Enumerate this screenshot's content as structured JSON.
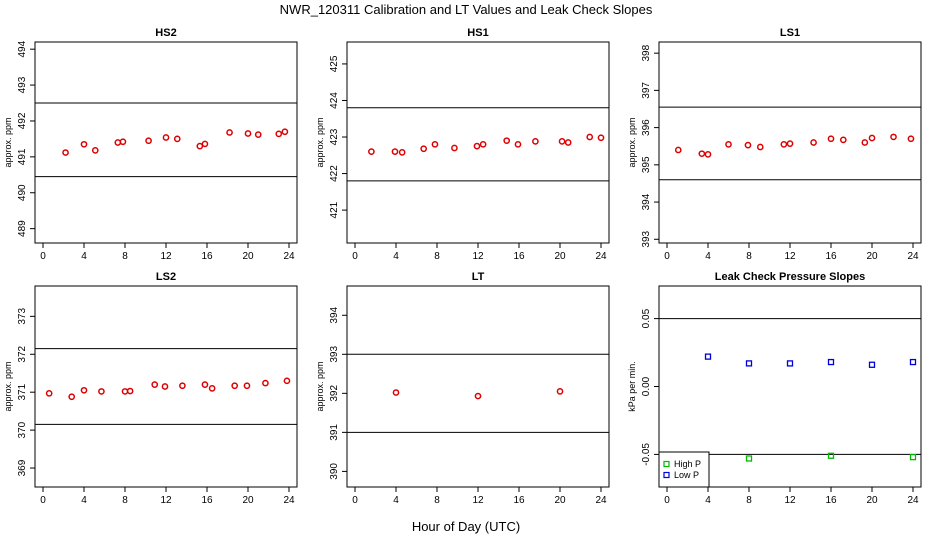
{
  "title": "NWR_120311  Calibration and LT Values and Leak Check Slopes",
  "xlabel": "Hour of Day (UTC)",
  "colors": {
    "red": "#dd0000",
    "blue": "#0000dd",
    "green": "#00bb00",
    "line": "#000000"
  },
  "chart_data": [
    {
      "type": "scatter",
      "title": "HS2",
      "ylabel": "approx. ppm",
      "xlim": [
        0,
        24
      ],
      "xticks": [
        0,
        4,
        8,
        12,
        16,
        20,
        24
      ],
      "ylim": [
        488.6,
        494.2
      ],
      "yticks": [
        489,
        490,
        491,
        492,
        493,
        494
      ],
      "hlines": [
        492.5,
        490.45
      ],
      "series": [
        {
          "name": "HS2",
          "color": "red",
          "marker": "circle",
          "x": [
            2.2,
            4.0,
            5.1,
            7.3,
            7.8,
            10.3,
            12.0,
            13.1,
            15.3,
            15.8,
            18.2,
            20.0,
            21.0,
            23.0,
            23.6
          ],
          "y": [
            491.12,
            491.35,
            491.18,
            491.4,
            491.42,
            491.45,
            491.54,
            491.5,
            491.3,
            491.36,
            491.68,
            491.65,
            491.62,
            491.64,
            491.7
          ]
        }
      ]
    },
    {
      "type": "scatter",
      "title": "HS1",
      "ylabel": "approx. ppm",
      "xlim": [
        0,
        24
      ],
      "xticks": [
        0,
        4,
        8,
        12,
        16,
        20,
        24
      ],
      "ylim": [
        420.1,
        425.6
      ],
      "yticks": [
        421,
        422,
        423,
        424,
        425
      ],
      "hlines": [
        423.8,
        421.8
      ],
      "series": [
        {
          "name": "HS1",
          "color": "red",
          "marker": "circle",
          "x": [
            1.6,
            3.9,
            4.6,
            6.7,
            7.8,
            9.7,
            11.9,
            12.5,
            14.8,
            15.9,
            17.6,
            20.2,
            20.8,
            22.9,
            24.0
          ],
          "y": [
            422.6,
            422.6,
            422.58,
            422.68,
            422.8,
            422.7,
            422.75,
            422.8,
            422.9,
            422.8,
            422.88,
            422.88,
            422.85,
            423.0,
            422.98
          ]
        }
      ]
    },
    {
      "type": "scatter",
      "title": "LS1",
      "ylabel": "approx. ppm",
      "xlim": [
        0,
        24
      ],
      "xticks": [
        0,
        4,
        8,
        12,
        16,
        20,
        24
      ],
      "ylim": [
        392.9,
        398.3
      ],
      "yticks": [
        393,
        394,
        395,
        396,
        397,
        398
      ],
      "hlines": [
        396.55,
        394.6
      ],
      "series": [
        {
          "name": "LS1",
          "color": "red",
          "marker": "circle",
          "x": [
            1.1,
            3.4,
            4.0,
            6.0,
            7.9,
            9.1,
            11.4,
            12.0,
            14.3,
            16.0,
            17.2,
            19.3,
            20.0,
            22.1,
            23.8
          ],
          "y": [
            395.4,
            395.3,
            395.28,
            395.55,
            395.53,
            395.48,
            395.55,
            395.57,
            395.6,
            395.7,
            395.67,
            395.6,
            395.72,
            395.75,
            395.7
          ]
        }
      ]
    },
    {
      "type": "scatter",
      "title": "LS2",
      "ylabel": "approx. ppm",
      "xlim": [
        0,
        24
      ],
      "xticks": [
        0,
        4,
        8,
        12,
        16,
        20,
        24
      ],
      "ylim": [
        368.5,
        373.8
      ],
      "yticks": [
        369,
        370,
        371,
        372,
        373
      ],
      "hlines": [
        372.15,
        370.15
      ],
      "series": [
        {
          "name": "LS2",
          "color": "red",
          "marker": "circle",
          "x": [
            0.6,
            2.8,
            4.0,
            5.7,
            8.0,
            8.5,
            10.9,
            11.9,
            13.6,
            15.8,
            16.5,
            18.7,
            19.9,
            21.7,
            23.8
          ],
          "y": [
            370.97,
            370.88,
            371.05,
            371.02,
            371.02,
            371.03,
            371.2,
            371.15,
            371.17,
            371.2,
            371.1,
            371.17,
            371.17,
            371.24,
            371.3
          ]
        }
      ]
    },
    {
      "type": "scatter",
      "title": "LT",
      "ylabel": "approx. ppm",
      "xlim": [
        0,
        24
      ],
      "xticks": [
        0,
        4,
        8,
        12,
        16,
        20,
        24
      ],
      "ylim": [
        389.6,
        394.75
      ],
      "yticks": [
        390,
        391,
        392,
        393,
        394
      ],
      "hlines": [
        393.0,
        391.0
      ],
      "series": [
        {
          "name": "LT",
          "color": "red",
          "marker": "circle",
          "x": [
            4.0,
            12.0,
            20.0
          ],
          "y": [
            392.02,
            391.93,
            392.05
          ]
        }
      ]
    },
    {
      "type": "scatter",
      "title": "Leak Check Pressure Slopes",
      "ylabel": "kPa per min.",
      "xlim": [
        0,
        24
      ],
      "xticks": [
        0,
        4,
        8,
        12,
        16,
        20,
        24
      ],
      "ylim": [
        -0.074,
        0.074
      ],
      "yticks": [
        -0.05,
        0.0,
        0.05
      ],
      "ytick_labels": [
        "-0.05",
        "0.00",
        "0.05"
      ],
      "hlines": [
        0.05,
        -0.05
      ],
      "legend": {
        "position": "bottom-left",
        "entries": [
          "High P",
          "Low P"
        ]
      },
      "series": [
        {
          "name": "High P",
          "color": "green",
          "marker": "square",
          "x": [
            8.0,
            16.0,
            24.0
          ],
          "y": [
            -0.053,
            -0.051,
            -0.052
          ]
        },
        {
          "name": "Low P",
          "color": "blue",
          "marker": "square",
          "x": [
            4.0,
            8.0,
            12.0,
            16.0,
            20.0,
            24.0
          ],
          "y": [
            0.022,
            0.017,
            0.017,
            0.018,
            0.016,
            0.018
          ]
        }
      ]
    }
  ]
}
